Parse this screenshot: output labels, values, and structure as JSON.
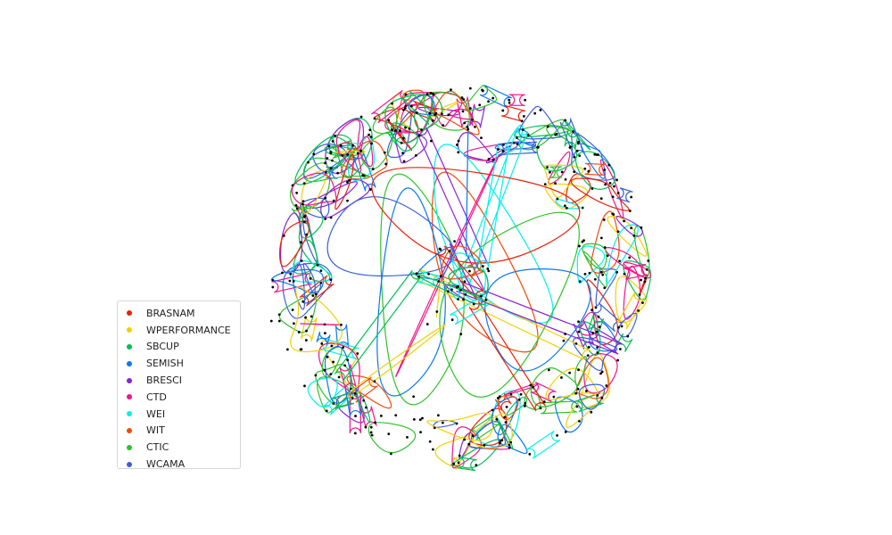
{
  "figure": {
    "type": "hypergraph",
    "node_color": "#000000"
  },
  "legend": {
    "placement": "lower-left",
    "items": [
      {
        "label": "BRASNAM",
        "color": "#e8210a"
      },
      {
        "label": "WPERFORMANCE",
        "color": "#f2d000"
      },
      {
        "label": "SBCUP",
        "color": "#00bf54"
      },
      {
        "label": "SEMISH",
        "color": "#0a78f0"
      },
      {
        "label": "BRESCI",
        "color": "#8a22d8"
      },
      {
        "label": "CTD",
        "color": "#f2138a"
      },
      {
        "label": "WEI",
        "color": "#00f0f0"
      },
      {
        "label": "WIT",
        "color": "#f24a0a"
      },
      {
        "label": "CTIC",
        "color": "#2ec22a"
      },
      {
        "label": "WCAMA",
        "color": "#3a60d8"
      }
    ]
  }
}
